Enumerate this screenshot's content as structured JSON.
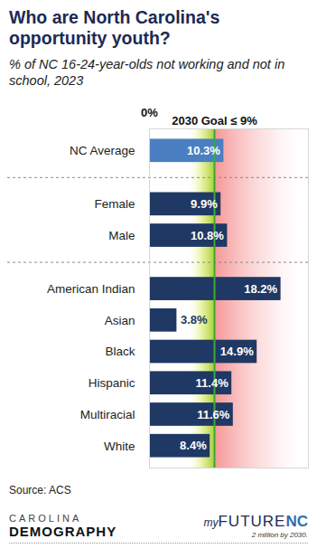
{
  "chart_data": {
    "type": "bar",
    "orientation": "horizontal",
    "title": "Who are North Carolina's opportunity youth?",
    "subtitle": "% of NC 16-24-year-olds not working and not in school, 2023",
    "categories": [
      "NC Average",
      "Female",
      "Male",
      "American Indian",
      "Asian",
      "Black",
      "Hispanic",
      "Multiracial",
      "White"
    ],
    "groups": [
      [
        "NC Average"
      ],
      [
        "Female",
        "Male"
      ],
      [
        "American Indian",
        "Asian",
        "Black",
        "Hispanic",
        "Multiracial",
        "White"
      ]
    ],
    "values": [
      10.3,
      9.9,
      10.8,
      18.2,
      3.8,
      14.9,
      11.4,
      11.6,
      8.4
    ],
    "value_labels": [
      "10.3%",
      "9.9%",
      "10.8%",
      "18.2%",
      "3.8%",
      "14.9%",
      "11.4%",
      "11.6%",
      "8.4%"
    ],
    "data_labels": true,
    "colors": [
      "#4a7fc1",
      "#1f3864",
      "#1f3864",
      "#1f3864",
      "#1f3864",
      "#1f3864",
      "#1f3864",
      "#1f3864",
      "#1f3864"
    ],
    "xlim": [
      0,
      22
    ],
    "xticks": [
      {
        "value": 0,
        "label": "0%"
      }
    ],
    "reference_line": {
      "value": 9,
      "label": "2030 Goal ≤ 9%",
      "color": "#3aaa35"
    },
    "grid": false,
    "source": "Source: ACS",
    "logos": [
      {
        "lines": [
          "CAROLINA",
          "DEMOGRAPHY"
        ]
      },
      {
        "parts": [
          "my",
          "FUTURE",
          "NC"
        ],
        "tagline": "2 million by 2030."
      }
    ]
  }
}
